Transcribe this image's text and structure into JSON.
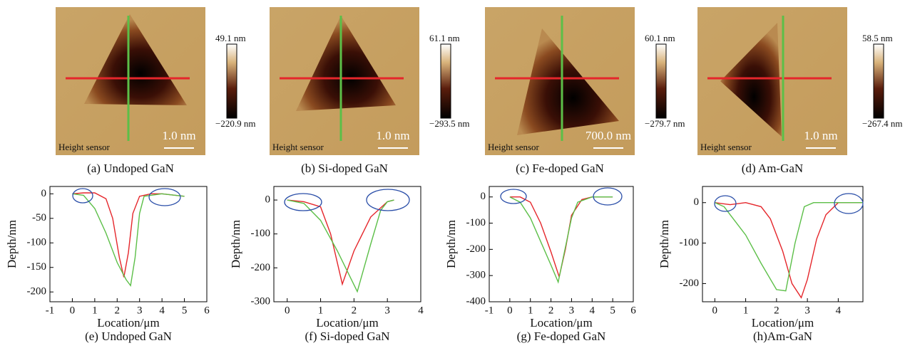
{
  "images": [
    {
      "caption": "(a) Undoped GaN",
      "channel": "Height sensor",
      "scale_bar": "1.0 nm",
      "colorbar_max": "49.1 nm",
      "colorbar_min": "−220.9 nm"
    },
    {
      "caption": "(b) Si-doped GaN",
      "channel": "Height sensor",
      "scale_bar": "1.0 nm",
      "colorbar_max": "61.1 nm",
      "colorbar_min": "−293.5 nm"
    },
    {
      "caption": "(c) Fe-doped GaN",
      "channel": "Height sensor",
      "scale_bar": "700.0 nm",
      "colorbar_max": "60.1 nm",
      "colorbar_min": "−279.7 nm"
    },
    {
      "caption": "(d) Am-GaN",
      "channel": "Height sensor",
      "scale_bar": "1.0 nm",
      "colorbar_max": "58.5 nm",
      "colorbar_min": "−267.4 nm"
    }
  ],
  "chart_data": [
    {
      "type": "line",
      "caption": "(e) Undoped GaN",
      "x_label": "Location/μm",
      "y_label": "Depth/nm",
      "xlim": [
        -1,
        6
      ],
      "xticks": [
        -1,
        0,
        1,
        2,
        3,
        4,
        5,
        6
      ],
      "ylim": [
        -220,
        15
      ],
      "yticks": [
        0,
        -50,
        -100,
        -150,
        -200
      ],
      "series": [
        {
          "color": "#e5262b",
          "x": [
            0,
            0.5,
            1,
            1.5,
            1.8,
            2.1,
            2.3,
            2.5,
            2.7,
            3,
            3.5,
            4,
            5
          ],
          "values": [
            0,
            2,
            2,
            -10,
            -50,
            -130,
            -170,
            -120,
            -40,
            -5,
            0,
            0,
            -5
          ]
        },
        {
          "color": "#5cbf48",
          "x": [
            0,
            0.5,
            1,
            1.5,
            2,
            2.4,
            2.6,
            2.8,
            3,
            3.2,
            4,
            5
          ],
          "values": [
            0,
            -3,
            -30,
            -80,
            -140,
            -175,
            -187,
            -130,
            -40,
            -5,
            0,
            -5
          ]
        }
      ]
    },
    {
      "type": "line",
      "caption": "(f) Si-doped GaN",
      "x_label": "Location/μm",
      "y_label": "Depth/nm",
      "xlim": [
        -0.4,
        4
      ],
      "xticks": [
        0,
        1,
        2,
        3,
        4
      ],
      "ylim": [
        -300,
        40
      ],
      "yticks": [
        0,
        -100,
        -200,
        -300
      ],
      "series": [
        {
          "color": "#e5262b",
          "x": [
            0,
            0.5,
            1,
            1.3,
            1.65,
            2,
            2.5,
            3,
            3.2
          ],
          "values": [
            0,
            -5,
            -20,
            -100,
            -248,
            -150,
            -50,
            -5,
            0
          ]
        },
        {
          "color": "#5cbf48",
          "x": [
            0,
            0.5,
            1,
            1.5,
            2.1,
            2.5,
            2.8,
            3,
            3.2
          ],
          "values": [
            0,
            -10,
            -60,
            -150,
            -270,
            -130,
            -30,
            -5,
            0
          ]
        }
      ]
    },
    {
      "type": "line",
      "caption": "(g) Fe-doped GaN",
      "x_label": "Location/μm",
      "y_label": "Depth/nm",
      "xlim": [
        -1,
        6
      ],
      "xticks": [
        -1,
        0,
        1,
        2,
        3,
        4,
        5,
        6
      ],
      "ylim": [
        -400,
        40
      ],
      "yticks": [
        0,
        -100,
        -200,
        -300,
        -400
      ],
      "series": [
        {
          "color": "#e5262b",
          "x": [
            0,
            0.5,
            1,
            1.5,
            2,
            2.4,
            2.7,
            3,
            3.5,
            4,
            5
          ],
          "values": [
            0,
            0,
            -20,
            -100,
            -210,
            -305,
            -200,
            -70,
            -10,
            0,
            0
          ]
        },
        {
          "color": "#5cbf48",
          "x": [
            0,
            0.5,
            1,
            1.5,
            2,
            2.35,
            2.6,
            3,
            3.3,
            4,
            5
          ],
          "values": [
            0,
            -20,
            -80,
            -170,
            -260,
            -325,
            -230,
            -80,
            -20,
            0,
            0
          ]
        }
      ]
    },
    {
      "type": "line",
      "caption": "(h)Am-GaN",
      "x_label": "Location/μm",
      "y_label": "Depth/nm",
      "xlim": [
        -0.4,
        4.8
      ],
      "xticks": [
        0,
        1,
        2,
        3,
        4
      ],
      "ylim": [
        -245,
        40
      ],
      "yticks": [
        0,
        -100,
        -200
      ],
      "series": [
        {
          "color": "#e5262b",
          "x": [
            0,
            0.5,
            1,
            1.5,
            1.8,
            2.2,
            2.5,
            2.8,
            3,
            3.3,
            3.6,
            4,
            4.8
          ],
          "values": [
            0,
            -5,
            0,
            -10,
            -40,
            -120,
            -200,
            -235,
            -190,
            -90,
            -30,
            0,
            0
          ]
        },
        {
          "color": "#5cbf48",
          "x": [
            0,
            0.3,
            0.5,
            1,
            1.5,
            2,
            2.3,
            2.6,
            2.9,
            3.2,
            4,
            4.8
          ],
          "values": [
            0,
            -10,
            -30,
            -80,
            -150,
            -215,
            -218,
            -100,
            -10,
            0,
            0,
            0
          ]
        }
      ]
    }
  ]
}
